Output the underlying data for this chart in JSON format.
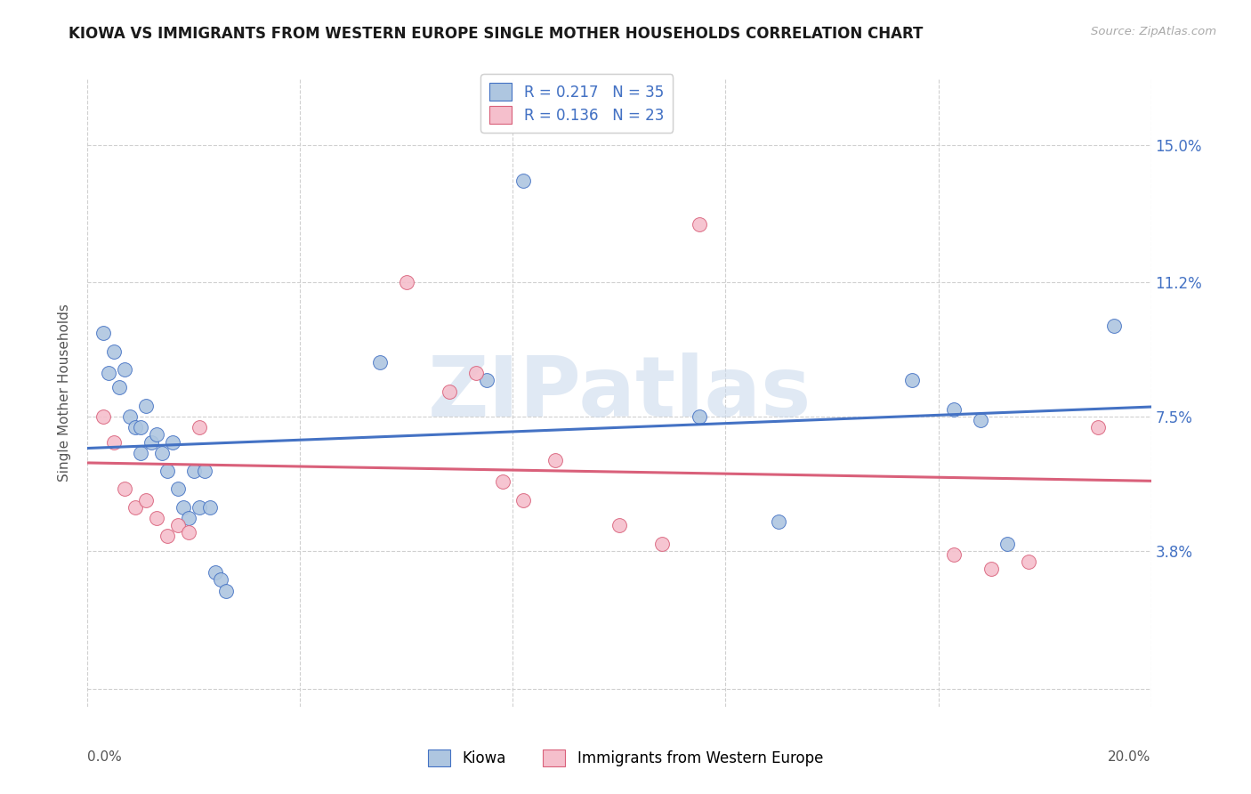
{
  "title": "KIOWA VS IMMIGRANTS FROM WESTERN EUROPE SINGLE MOTHER HOUSEHOLDS CORRELATION CHART",
  "source": "Source: ZipAtlas.com",
  "ylabel": "Single Mother Households",
  "legend_r1": "R = 0.217",
  "legend_n1": "N = 35",
  "legend_r2": "R = 0.136",
  "legend_n2": "N = 23",
  "legend_label1": "Kiowa",
  "legend_label2": "Immigrants from Western Europe",
  "watermark": "ZIPatlas",
  "ytick_vals": [
    0.0,
    0.038,
    0.075,
    0.112,
    0.15
  ],
  "ytick_labels": [
    "",
    "3.8%",
    "7.5%",
    "11.2%",
    "15.0%"
  ],
  "xtick_vals": [
    0.0,
    0.04,
    0.08,
    0.12,
    0.16,
    0.2
  ],
  "xlim": [
    0.0,
    0.2
  ],
  "ylim": [
    -0.005,
    0.168
  ],
  "blue_fill": "#aec6e0",
  "blue_edge": "#4472c4",
  "blue_line": "#4472c4",
  "pink_fill": "#f5bfcc",
  "pink_edge": "#d9607a",
  "pink_line": "#d9607a",
  "bg": "#ffffff",
  "grid_color": "#d0d0d0",
  "title_color": "#1a1a1a",
  "ylabel_color": "#555555",
  "ytick_color": "#4472c4",
  "source_color": "#aaaaaa",
  "kiowa_x": [
    0.003,
    0.004,
    0.005,
    0.006,
    0.007,
    0.008,
    0.009,
    0.01,
    0.01,
    0.011,
    0.012,
    0.013,
    0.014,
    0.015,
    0.016,
    0.017,
    0.018,
    0.019,
    0.02,
    0.021,
    0.022,
    0.023,
    0.024,
    0.025,
    0.026,
    0.055,
    0.075,
    0.082,
    0.115,
    0.13,
    0.155,
    0.163,
    0.168,
    0.173,
    0.193
  ],
  "kiowa_y": [
    0.098,
    0.087,
    0.093,
    0.083,
    0.088,
    0.075,
    0.072,
    0.072,
    0.065,
    0.078,
    0.068,
    0.07,
    0.065,
    0.06,
    0.068,
    0.055,
    0.05,
    0.047,
    0.06,
    0.05,
    0.06,
    0.05,
    0.032,
    0.03,
    0.027,
    0.09,
    0.085,
    0.14,
    0.075,
    0.046,
    0.085,
    0.077,
    0.074,
    0.04,
    0.1
  ],
  "western_x": [
    0.003,
    0.005,
    0.007,
    0.009,
    0.011,
    0.013,
    0.015,
    0.017,
    0.019,
    0.021,
    0.06,
    0.068,
    0.073,
    0.078,
    0.082,
    0.088,
    0.1,
    0.108,
    0.115,
    0.163,
    0.17,
    0.177,
    0.19
  ],
  "western_y": [
    0.075,
    0.068,
    0.055,
    0.05,
    0.052,
    0.047,
    0.042,
    0.045,
    0.043,
    0.072,
    0.112,
    0.082,
    0.087,
    0.057,
    0.052,
    0.063,
    0.045,
    0.04,
    0.128,
    0.037,
    0.033,
    0.035,
    0.072
  ]
}
